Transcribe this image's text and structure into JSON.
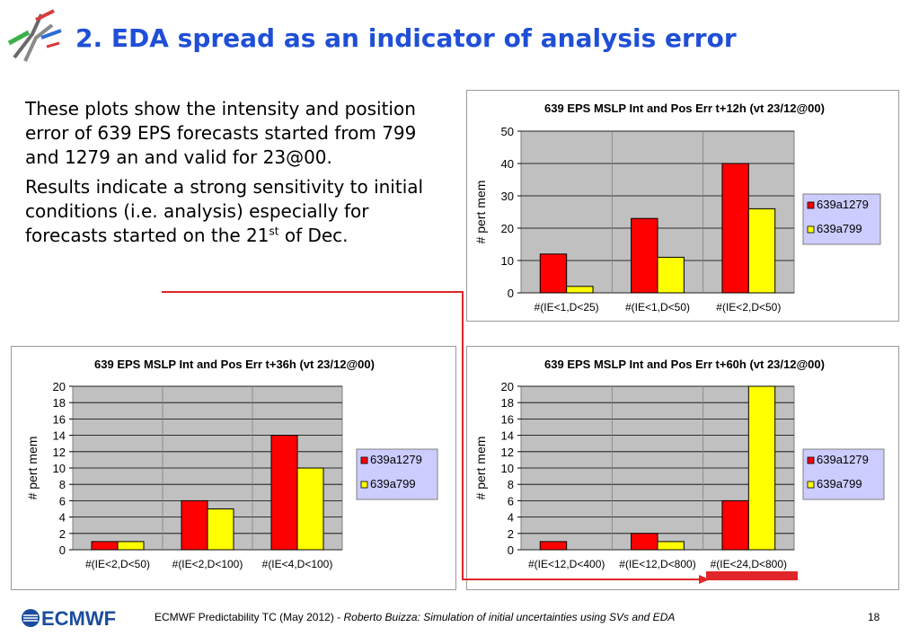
{
  "slide": {
    "title": "2. EDA spread as an indicator of analysis error",
    "paragraphs": [
      "These plots show the intensity and position error of 639 EPS forecasts started from 799 and 1279 an and valid for 23@00.",
      "Results indicate a strong sensitivity to initial conditions (i.e. analysis) especially for forecasts started on the 21"
    ],
    "para2_sup": "st",
    "para2_tail": " of Dec.",
    "footer": {
      "org": "ECMWF",
      "text_plain": "ECMWF Predictability TC (May 2012) - ",
      "text_italic": "Roberto Buizza: Simulation of initial uncertainties using SVs and EDA",
      "page": "18"
    }
  },
  "colors": {
    "red": "#ff0000",
    "yellow": "#ffff00",
    "plot_bg": "#c0c0c0",
    "legend_bg": "#ccccff",
    "accent": "#e0262a"
  },
  "chart_data": [
    {
      "type": "bar",
      "title": "639 EPS MSLP Int and Pos Err t+12h (vt 23/12@00)",
      "ylabel": "# pert mem",
      "categories": [
        "#(IE<1,D<25)",
        "#(IE<1,D<50)",
        "#(IE<2,D<50)"
      ],
      "series": [
        {
          "name": "639a1279",
          "values": [
            12,
            23,
            40
          ]
        },
        {
          "name": "639a799",
          "values": [
            2,
            11,
            26
          ]
        }
      ],
      "ylim": [
        0,
        50
      ],
      "yticks": [
        "0",
        "10",
        "20",
        "30",
        "40",
        "50"
      ],
      "legend": "right"
    },
    {
      "type": "bar",
      "title": "639 EPS MSLP Int and Pos Err t+36h (vt 23/12@00)",
      "ylabel": "# pert mem",
      "categories": [
        "#(IE<2,D<50)",
        "#(IE<2,D<100)",
        "#(IE<4,D<100)"
      ],
      "series": [
        {
          "name": "639a1279",
          "values": [
            1,
            6,
            14
          ]
        },
        {
          "name": "639a799",
          "values": [
            1,
            5,
            10
          ]
        }
      ],
      "ylim": [
        0,
        20
      ],
      "yticks": [
        "0",
        "2",
        "4",
        "6",
        "8",
        "10",
        "12",
        "14",
        "16",
        "18",
        "20"
      ],
      "legend": "right"
    },
    {
      "type": "bar",
      "title": "639 EPS MSLP Int and Pos Err t+60h (vt 23/12@00)",
      "ylabel": "# pert mem",
      "categories": [
        "#(IE<12,D<400)",
        "#(IE<12,D<800)",
        "#(IE<24,D<800)"
      ],
      "series": [
        {
          "name": "639a1279",
          "values": [
            1,
            2,
            6
          ]
        },
        {
          "name": "639a799",
          "values": [
            0,
            1,
            20
          ]
        }
      ],
      "ylim": [
        0,
        20
      ],
      "yticks": [
        "0",
        "2",
        "4",
        "6",
        "8",
        "10",
        "12",
        "14",
        "16",
        "18",
        "20"
      ],
      "legend": "right"
    }
  ]
}
